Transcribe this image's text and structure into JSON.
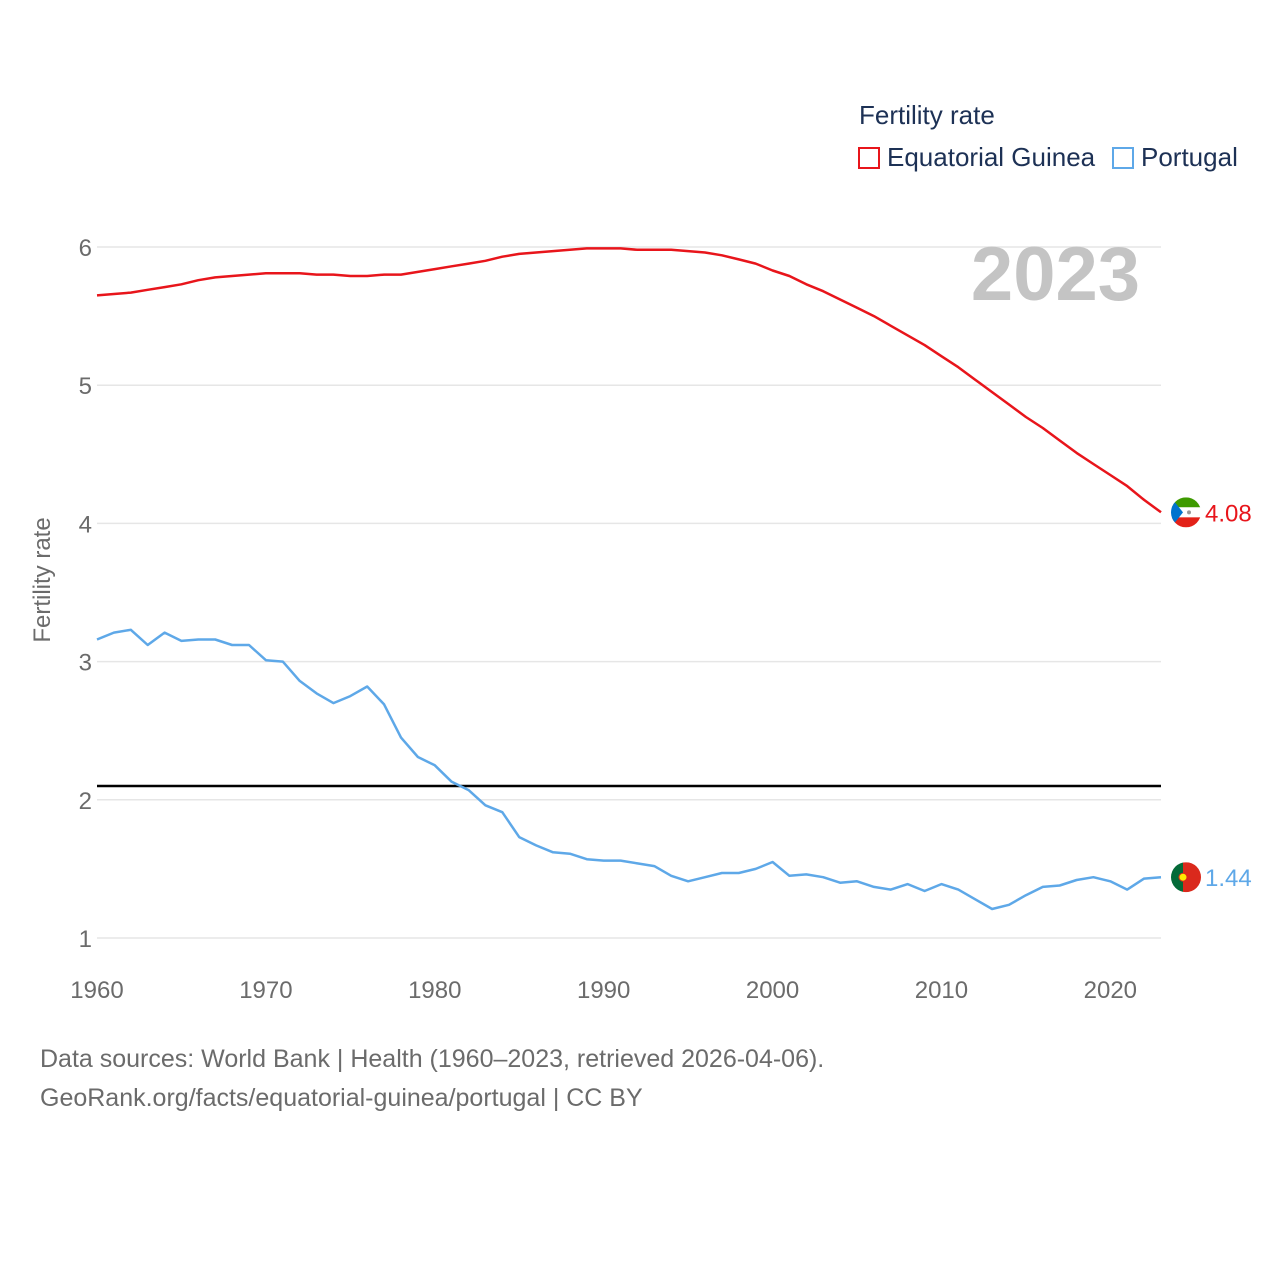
{
  "chart_data": {
    "type": "line",
    "legend_title": "Fertility rate",
    "ylabel": "Fertility rate",
    "xlabel": "",
    "year_label": "2023",
    "xlim": [
      1960,
      2023
    ],
    "ylim": [
      1,
      6
    ],
    "x_ticks": [
      "1960",
      "1970",
      "1980",
      "1990",
      "2000",
      "2010",
      "2020"
    ],
    "y_ticks": [
      "1",
      "2",
      "3",
      "4",
      "5",
      "6"
    ],
    "reference_line": 2.1,
    "legend_position": "top-right",
    "x": [
      1960,
      1961,
      1962,
      1963,
      1964,
      1965,
      1966,
      1967,
      1968,
      1969,
      1970,
      1971,
      1972,
      1973,
      1974,
      1975,
      1976,
      1977,
      1978,
      1979,
      1980,
      1981,
      1982,
      1983,
      1984,
      1985,
      1986,
      1987,
      1988,
      1989,
      1990,
      1991,
      1992,
      1993,
      1994,
      1995,
      1996,
      1997,
      1998,
      1999,
      2000,
      2001,
      2002,
      2003,
      2004,
      2005,
      2006,
      2007,
      2008,
      2009,
      2010,
      2011,
      2012,
      2013,
      2014,
      2015,
      2016,
      2017,
      2018,
      2019,
      2020,
      2021,
      2022,
      2023
    ],
    "series": [
      {
        "name": "Equatorial Guinea",
        "color": "#e8151b",
        "end_label": "4.08",
        "values": [
          5.65,
          5.66,
          5.67,
          5.69,
          5.71,
          5.73,
          5.76,
          5.78,
          5.79,
          5.8,
          5.81,
          5.81,
          5.81,
          5.8,
          5.8,
          5.79,
          5.79,
          5.8,
          5.8,
          5.82,
          5.84,
          5.86,
          5.88,
          5.9,
          5.93,
          5.95,
          5.96,
          5.97,
          5.98,
          5.99,
          5.99,
          5.99,
          5.98,
          5.98,
          5.98,
          5.97,
          5.96,
          5.94,
          5.91,
          5.88,
          5.83,
          5.79,
          5.73,
          5.68,
          5.62,
          5.56,
          5.5,
          5.43,
          5.36,
          5.29,
          5.21,
          5.13,
          5.04,
          4.95,
          4.86,
          4.77,
          4.69,
          4.6,
          4.51,
          4.43,
          4.35,
          4.27,
          4.17,
          4.08
        ]
      },
      {
        "name": "Portugal",
        "color": "#5ea8e8",
        "end_label": "1.44",
        "values": [
          3.16,
          3.21,
          3.23,
          3.12,
          3.21,
          3.15,
          3.16,
          3.16,
          3.12,
          3.12,
          3.01,
          3.0,
          2.86,
          2.77,
          2.7,
          2.75,
          2.82,
          2.69,
          2.45,
          2.31,
          2.25,
          2.13,
          2.07,
          1.96,
          1.91,
          1.73,
          1.67,
          1.62,
          1.61,
          1.57,
          1.56,
          1.56,
          1.54,
          1.52,
          1.45,
          1.41,
          1.44,
          1.47,
          1.47,
          1.5,
          1.55,
          1.45,
          1.46,
          1.44,
          1.4,
          1.41,
          1.37,
          1.35,
          1.39,
          1.34,
          1.39,
          1.35,
          1.28,
          1.21,
          1.24,
          1.31,
          1.37,
          1.38,
          1.42,
          1.44,
          1.41,
          1.35,
          1.43,
          1.44
        ]
      }
    ]
  },
  "legend": {
    "items": [
      "Equatorial Guinea",
      "Portugal"
    ]
  },
  "source": {
    "line1": "Data sources: World Bank | Health (1960–2023, retrieved 2026-04-06).",
    "line2": "GeoRank.org/facts/equatorial-guinea/portugal | CC BY"
  },
  "colors": {
    "equatorial_guinea": "#e8151b",
    "portugal": "#5ea8e8",
    "grid": "#e6e6e6",
    "axis_text": "#6b6b6b",
    "year_watermark": "#c4c4c4"
  },
  "icons": [
    "equatorial-guinea-flag-icon",
    "portugal-flag-icon"
  ]
}
